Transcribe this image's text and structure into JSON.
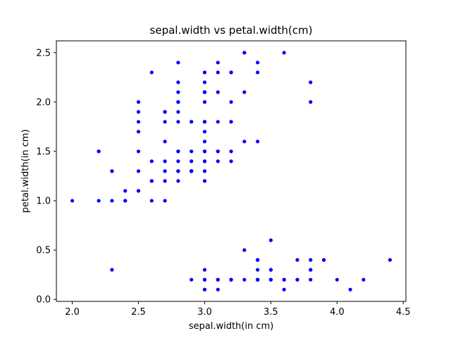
{
  "chart_data": {
    "type": "scatter",
    "title": "sepal.width vs petal.width(cm)",
    "xlabel": "sepal.width(in cm)",
    "ylabel": "petal.width(in cm)",
    "xlim": [
      1.88,
      4.52
    ],
    "ylim": [
      -0.02,
      2.62
    ],
    "xticks": [
      "2.0",
      "2.5",
      "3.0",
      "3.5",
      "4.0",
      "4.5"
    ],
    "yticks": [
      "0.0",
      "0.5",
      "1.0",
      "1.5",
      "2.0",
      "2.5"
    ],
    "grid": false,
    "marker_color": "#0000ff",
    "series": [
      {
        "points": [
          [
            3.5,
            0.2
          ],
          [
            3.0,
            0.2
          ],
          [
            3.2,
            0.2
          ],
          [
            3.1,
            0.2
          ],
          [
            3.6,
            0.2
          ],
          [
            3.9,
            0.4
          ],
          [
            3.4,
            0.3
          ],
          [
            3.4,
            0.2
          ],
          [
            2.9,
            0.2
          ],
          [
            3.1,
            0.1
          ],
          [
            3.7,
            0.2
          ],
          [
            3.4,
            0.2
          ],
          [
            3.0,
            0.1
          ],
          [
            3.0,
            0.1
          ],
          [
            4.0,
            0.2
          ],
          [
            4.4,
            0.4
          ],
          [
            3.9,
            0.4
          ],
          [
            3.5,
            0.3
          ],
          [
            3.8,
            0.3
          ],
          [
            3.8,
            0.3
          ],
          [
            3.4,
            0.2
          ],
          [
            3.7,
            0.4
          ],
          [
            3.6,
            0.2
          ],
          [
            3.3,
            0.5
          ],
          [
            3.4,
            0.2
          ],
          [
            3.0,
            0.2
          ],
          [
            3.4,
            0.4
          ],
          [
            3.5,
            0.2
          ],
          [
            3.4,
            0.2
          ],
          [
            3.2,
            0.2
          ],
          [
            3.1,
            0.2
          ],
          [
            3.4,
            0.4
          ],
          [
            4.1,
            0.1
          ],
          [
            4.2,
            0.2
          ],
          [
            3.1,
            0.2
          ],
          [
            3.2,
            0.2
          ],
          [
            3.5,
            0.2
          ],
          [
            3.6,
            0.1
          ],
          [
            3.0,
            0.2
          ],
          [
            3.4,
            0.2
          ],
          [
            3.5,
            0.3
          ],
          [
            2.3,
            0.3
          ],
          [
            3.2,
            0.2
          ],
          [
            3.5,
            0.6
          ],
          [
            3.8,
            0.4
          ],
          [
            3.0,
            0.3
          ],
          [
            3.8,
            0.2
          ],
          [
            3.2,
            0.2
          ],
          [
            3.7,
            0.2
          ],
          [
            3.3,
            0.2
          ],
          [
            3.2,
            1.4
          ],
          [
            3.2,
            1.5
          ],
          [
            3.1,
            1.5
          ],
          [
            2.3,
            1.3
          ],
          [
            2.8,
            1.5
          ],
          [
            2.8,
            1.3
          ],
          [
            3.3,
            1.6
          ],
          [
            2.4,
            1.0
          ],
          [
            2.9,
            1.3
          ],
          [
            2.7,
            1.4
          ],
          [
            2.0,
            1.0
          ],
          [
            3.0,
            1.5
          ],
          [
            2.2,
            1.0
          ],
          [
            2.9,
            1.4
          ],
          [
            2.9,
            1.3
          ],
          [
            3.1,
            1.4
          ],
          [
            3.0,
            1.5
          ],
          [
            2.7,
            1.0
          ],
          [
            2.2,
            1.5
          ],
          [
            2.5,
            1.1
          ],
          [
            3.2,
            1.8
          ],
          [
            2.8,
            1.3
          ],
          [
            2.5,
            1.5
          ],
          [
            2.8,
            1.2
          ],
          [
            2.9,
            1.3
          ],
          [
            3.0,
            1.4
          ],
          [
            2.8,
            1.4
          ],
          [
            3.0,
            1.7
          ],
          [
            2.9,
            1.5
          ],
          [
            2.6,
            1.0
          ],
          [
            2.4,
            1.1
          ],
          [
            2.4,
            1.0
          ],
          [
            2.7,
            1.2
          ],
          [
            2.7,
            1.6
          ],
          [
            3.0,
            1.5
          ],
          [
            3.4,
            1.6
          ],
          [
            3.1,
            1.5
          ],
          [
            2.3,
            1.3
          ],
          [
            3.0,
            1.3
          ],
          [
            2.5,
            1.3
          ],
          [
            2.6,
            1.2
          ],
          [
            3.0,
            1.4
          ],
          [
            2.6,
            1.2
          ],
          [
            2.3,
            1.0
          ],
          [
            2.7,
            1.3
          ],
          [
            3.0,
            1.2
          ],
          [
            2.9,
            1.3
          ],
          [
            2.9,
            1.3
          ],
          [
            2.5,
            1.1
          ],
          [
            2.8,
            1.3
          ],
          [
            3.3,
            2.5
          ],
          [
            2.7,
            1.9
          ],
          [
            3.0,
            2.1
          ],
          [
            2.9,
            1.8
          ],
          [
            3.0,
            2.2
          ],
          [
            3.0,
            2.1
          ],
          [
            2.5,
            1.7
          ],
          [
            2.9,
            1.8
          ],
          [
            2.5,
            1.8
          ],
          [
            3.6,
            2.5
          ],
          [
            3.2,
            2.0
          ],
          [
            2.7,
            1.9
          ],
          [
            3.0,
            2.1
          ],
          [
            2.5,
            2.0
          ],
          [
            2.8,
            2.4
          ],
          [
            3.2,
            2.3
          ],
          [
            3.0,
            1.8
          ],
          [
            3.8,
            2.2
          ],
          [
            2.6,
            2.3
          ],
          [
            2.2,
            1.5
          ],
          [
            3.2,
            2.3
          ],
          [
            2.8,
            2.0
          ],
          [
            2.8,
            2.0
          ],
          [
            2.7,
            1.8
          ],
          [
            3.3,
            2.1
          ],
          [
            3.2,
            1.8
          ],
          [
            2.8,
            1.8
          ],
          [
            3.0,
            1.8
          ],
          [
            2.8,
            2.1
          ],
          [
            3.0,
            1.6
          ],
          [
            2.8,
            1.9
          ],
          [
            3.8,
            2.0
          ],
          [
            2.8,
            2.2
          ],
          [
            2.8,
            1.5
          ],
          [
            2.6,
            1.4
          ],
          [
            3.0,
            2.3
          ],
          [
            3.4,
            2.4
          ],
          [
            3.1,
            1.8
          ],
          [
            3.0,
            1.8
          ],
          [
            3.1,
            2.1
          ],
          [
            3.1,
            2.4
          ],
          [
            3.1,
            2.3
          ],
          [
            2.7,
            1.9
          ],
          [
            3.2,
            2.3
          ],
          [
            3.3,
            2.5
          ],
          [
            3.0,
            2.3
          ],
          [
            2.5,
            1.9
          ],
          [
            3.0,
            2.0
          ],
          [
            3.4,
            2.3
          ],
          [
            3.0,
            1.8
          ]
        ]
      }
    ]
  }
}
